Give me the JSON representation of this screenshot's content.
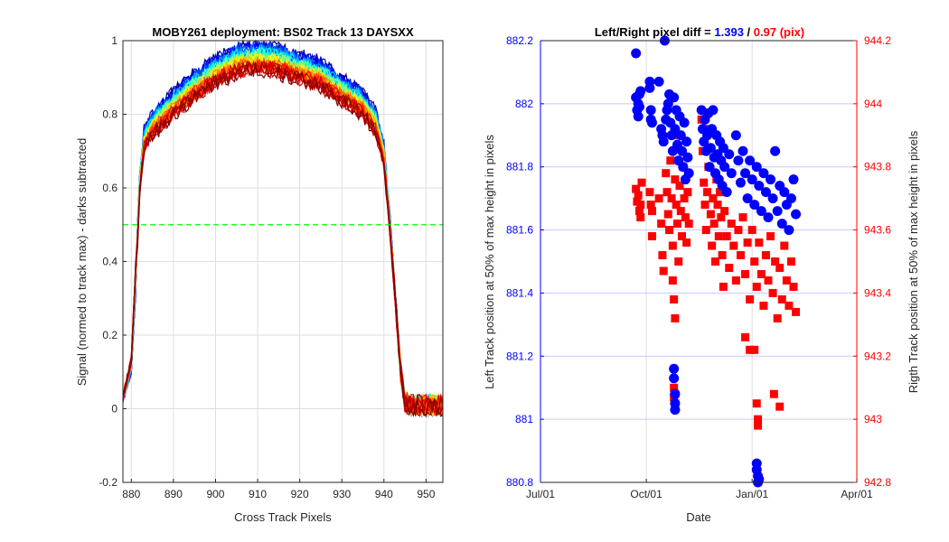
{
  "chart_data": [
    {
      "type": "line",
      "title": "MOBY261 deployment: BS02  Track 13 DAYSXX",
      "xlabel": "Cross Track Pixels",
      "ylabel": "Signal (normed to track max) - darks subtracted",
      "xlim": [
        878,
        954
      ],
      "ylim": [
        -0.2,
        1.0
      ],
      "xticks": [
        880,
        890,
        900,
        910,
        920,
        930,
        940,
        950
      ],
      "yticks": [
        -0.2,
        0,
        0.2,
        0.4,
        0.6,
        0.8,
        1
      ],
      "xtick_labels": [
        "880",
        "890",
        "900",
        "910",
        "920",
        "930",
        "940",
        "950"
      ],
      "ytick_labels": [
        "-0.2",
        "0",
        "0.2",
        "0.4",
        "0.6",
        "0.8",
        "1"
      ],
      "grid": true,
      "colormap": "jet",
      "threshold_line": {
        "y": 0.5,
        "color": "#00ff00",
        "style": "dashed"
      },
      "profile": {
        "x": [
          878,
          880,
          881,
          882,
          883,
          885,
          890,
          895,
          900,
          905,
          910,
          915,
          920,
          925,
          930,
          935,
          938,
          940,
          941,
          942,
          943,
          944,
          945,
          946,
          947,
          950,
          954
        ],
        "y": [
          0.03,
          0.12,
          0.35,
          0.62,
          0.74,
          0.78,
          0.84,
          0.89,
          0.93,
          0.96,
          0.97,
          0.96,
          0.94,
          0.92,
          0.88,
          0.84,
          0.79,
          0.7,
          0.57,
          0.42,
          0.25,
          0.1,
          0.02,
          0.01,
          0.01,
          0.01,
          0.01
        ]
      },
      "n_curves": 40
    },
    {
      "type": "scatter",
      "title_parts": [
        {
          "text": "Left/Right pixel diff = ",
          "color": "#000000"
        },
        {
          "text": "1.393",
          "color": "#0000ff"
        },
        {
          "text": " / ",
          "color": "#000000"
        },
        {
          "text": "0.97 (pix)",
          "color": "#ff0000"
        }
      ],
      "xlabel": "Date",
      "ylabel_left": "Left Track position at 50% of max height in pixels",
      "ylabel_right": "Rigth Track position at 50% of max height in pixels",
      "x_axis": "date",
      "xlim": [
        "2015-07-01",
        "2016-04-01"
      ],
      "xtick_labels": [
        "Jul/01",
        "Oct/01",
        "Jan/01",
        "Apr/01"
      ],
      "ylim_left": [
        880.8,
        882.2
      ],
      "ylim_right": [
        942.8,
        944.2
      ],
      "yticks_left": [
        "880.8",
        "881",
        "881.2",
        "881.4",
        "881.6",
        "881.8",
        "882",
        "882.2"
      ],
      "yticks_right": [
        "942.8",
        "943",
        "943.2",
        "943.4",
        "943.6",
        "943.8",
        "944",
        "944.2"
      ],
      "grid": true,
      "left_color": "#0000ff",
      "right_color": "#ff0000",
      "series": [
        {
          "name": "Left",
          "axis": "left",
          "marker": "circle",
          "color": "#0000ff",
          "points": [
            [
              "2015-09-22",
              882.16
            ],
            [
              "2015-09-22",
              882.02
            ],
            [
              "2015-09-23",
              881.98
            ],
            [
              "2015-09-24",
              882.0
            ],
            [
              "2015-09-24",
              881.96
            ],
            [
              "2015-09-25",
              882.03
            ],
            [
              "2015-09-25",
              881.99
            ],
            [
              "2015-09-26",
              882.04
            ],
            [
              "2015-10-04",
              882.07
            ],
            [
              "2015-10-04",
              882.05
            ],
            [
              "2015-10-05",
              881.98
            ],
            [
              "2015-10-05",
              881.95
            ],
            [
              "2015-10-06",
              881.94
            ],
            [
              "2015-10-12",
              882.07
            ],
            [
              "2015-10-14",
              881.92
            ],
            [
              "2015-10-15",
              881.9
            ],
            [
              "2015-10-16",
              881.88
            ],
            [
              "2015-10-17",
              882.2
            ],
            [
              "2015-10-18",
              881.95
            ],
            [
              "2015-10-19",
              881.98
            ],
            [
              "2015-10-20",
              882.0
            ],
            [
              "2015-10-21",
              882.03
            ],
            [
              "2015-10-22",
              881.94
            ],
            [
              "2015-10-23",
              881.9
            ],
            [
              "2015-10-24",
              881.85
            ],
            [
              "2015-10-25",
              882.02
            ],
            [
              "2015-10-26",
              881.92
            ],
            [
              "2015-10-27",
              881.98
            ],
            [
              "2015-10-28",
              881.87
            ],
            [
              "2015-10-29",
              881.82
            ],
            [
              "2015-10-30",
              881.96
            ],
            [
              "2015-10-31",
              881.9
            ],
            [
              "2015-11-01",
              881.85
            ],
            [
              "2015-11-02",
              881.8
            ],
            [
              "2015-11-03",
              881.94
            ],
            [
              "2015-11-04",
              881.76
            ],
            [
              "2015-11-05",
              881.88
            ],
            [
              "2015-11-06",
              881.83
            ],
            [
              "2015-11-07",
              881.78
            ],
            [
              "2015-10-25",
              881.16
            ],
            [
              "2015-10-25",
              881.13
            ],
            [
              "2015-10-26",
              881.08
            ],
            [
              "2015-10-26",
              881.05
            ],
            [
              "2015-10-26",
              881.03
            ],
            [
              "2015-11-18",
              881.98
            ],
            [
              "2015-11-19",
              881.92
            ],
            [
              "2015-11-20",
              881.88
            ],
            [
              "2015-11-21",
              881.95
            ],
            [
              "2015-11-22",
              881.85
            ],
            [
              "2015-11-23",
              881.9
            ],
            [
              "2015-11-24",
              881.97
            ],
            [
              "2015-11-25",
              881.8
            ],
            [
              "2015-11-26",
              881.86
            ],
            [
              "2015-11-27",
              881.92
            ],
            [
              "2015-11-28",
              881.98
            ],
            [
              "2015-11-29",
              881.83
            ],
            [
              "2015-11-30",
              881.78
            ],
            [
              "2015-12-01",
              881.9
            ],
            [
              "2015-12-02",
              881.84
            ],
            [
              "2015-12-03",
              881.76
            ],
            [
              "2015-12-04",
              881.88
            ],
            [
              "2015-12-05",
              881.82
            ],
            [
              "2015-12-06",
              881.74
            ],
            [
              "2015-12-07",
              881.86
            ],
            [
              "2015-12-08",
              881.8
            ],
            [
              "2015-12-10",
              881.72
            ],
            [
              "2015-12-12",
              881.84
            ],
            [
              "2015-12-14",
              881.78
            ],
            [
              "2015-12-18",
              881.9
            ],
            [
              "2015-12-20",
              881.82
            ],
            [
              "2015-12-22",
              881.75
            ],
            [
              "2015-12-24",
              881.85
            ],
            [
              "2015-12-26",
              881.78
            ],
            [
              "2015-12-28",
              881.7
            ],
            [
              "2015-12-30",
              881.82
            ],
            [
              "2016-01-01",
              881.76
            ],
            [
              "2016-01-03",
              881.68
            ],
            [
              "2016-01-05",
              881.8
            ],
            [
              "2016-01-07",
              881.74
            ],
            [
              "2016-01-09",
              881.66
            ],
            [
              "2016-01-11",
              881.78
            ],
            [
              "2016-01-13",
              881.72
            ],
            [
              "2016-01-15",
              881.64
            ],
            [
              "2016-01-17",
              881.76
            ],
            [
              "2016-01-19",
              881.7
            ],
            [
              "2016-01-21",
              881.85
            ],
            [
              "2016-01-23",
              881.66
            ],
            [
              "2016-01-25",
              881.74
            ],
            [
              "2016-01-27",
              881.62
            ],
            [
              "2016-01-29",
              881.72
            ],
            [
              "2016-01-31",
              881.68
            ],
            [
              "2016-02-02",
              881.6
            ],
            [
              "2016-02-04",
              881.7
            ],
            [
              "2016-02-06",
              881.76
            ],
            [
              "2016-02-08",
              881.65
            ],
            [
              "2016-01-05",
              880.86
            ],
            [
              "2016-01-05",
              880.84
            ],
            [
              "2016-01-06",
              880.82
            ],
            [
              "2016-01-06",
              880.8
            ],
            [
              "2016-01-07",
              880.81
            ]
          ]
        },
        {
          "name": "Right",
          "axis": "right",
          "marker": "square",
          "color": "#ff0000",
          "points": [
            [
              "2015-09-22",
              943.73
            ],
            [
              "2015-09-23",
              943.69
            ],
            [
              "2015-09-24",
              943.71
            ],
            [
              "2015-09-25",
              943.66
            ],
            [
              "2015-09-26",
              943.68
            ],
            [
              "2015-09-27",
              943.75
            ],
            [
              "2015-09-26",
              943.64
            ],
            [
              "2015-10-04",
              943.72
            ],
            [
              "2015-10-05",
              943.68
            ],
            [
              "2015-10-06",
              943.66
            ],
            [
              "2015-10-06",
              943.58
            ],
            [
              "2015-10-12",
              943.7
            ],
            [
              "2015-10-14",
              943.62
            ],
            [
              "2015-10-15",
              943.52
            ],
            [
              "2015-10-16",
              943.47
            ],
            [
              "2015-10-18",
              943.78
            ],
            [
              "2015-10-19",
              943.72
            ],
            [
              "2015-10-20",
              943.65
            ],
            [
              "2015-10-21",
              943.6
            ],
            [
              "2015-10-22",
              943.82
            ],
            [
              "2015-10-23",
              943.7
            ],
            [
              "2015-10-24",
              943.55
            ],
            [
              "2015-10-25",
              943.9
            ],
            [
              "2015-10-26",
              943.76
            ],
            [
              "2015-10-27",
              943.68
            ],
            [
              "2015-10-28",
              943.62
            ],
            [
              "2015-10-29",
              943.5
            ],
            [
              "2015-10-30",
              943.74
            ],
            [
              "2015-10-31",
              943.66
            ],
            [
              "2015-11-01",
              943.58
            ],
            [
              "2015-11-02",
              943.8
            ],
            [
              "2015-11-03",
              943.7
            ],
            [
              "2015-11-04",
              943.64
            ],
            [
              "2015-11-05",
              943.56
            ],
            [
              "2015-11-06",
              943.72
            ],
            [
              "2015-11-07",
              943.62
            ],
            [
              "2015-10-24",
              943.44
            ],
            [
              "2015-10-25",
              943.38
            ],
            [
              "2015-10-26",
              943.32
            ],
            [
              "2015-10-25",
              943.1
            ],
            [
              "2015-10-25",
              943.07
            ],
            [
              "2015-10-26",
              943.05
            ],
            [
              "2015-10-26",
              943.08
            ],
            [
              "2015-11-18",
              943.95
            ],
            [
              "2015-11-19",
              943.85
            ],
            [
              "2015-11-20",
              943.75
            ],
            [
              "2015-11-21",
              943.68
            ],
            [
              "2015-11-22",
              943.6
            ],
            [
              "2015-11-23",
              943.72
            ],
            [
              "2015-11-24",
              943.8
            ],
            [
              "2015-11-25",
              943.92
            ],
            [
              "2015-11-26",
              943.65
            ],
            [
              "2015-11-27",
              943.55
            ],
            [
              "2015-11-28",
              943.7
            ],
            [
              "2015-11-29",
              943.62
            ],
            [
              "2015-11-30",
              943.5
            ],
            [
              "2015-12-01",
              943.76
            ],
            [
              "2015-12-02",
              943.68
            ],
            [
              "2015-12-03",
              943.58
            ],
            [
              "2015-12-04",
              943.72
            ],
            [
              "2015-12-05",
              943.64
            ],
            [
              "2015-12-06",
              943.52
            ],
            [
              "2015-12-07",
              943.42
            ],
            [
              "2015-12-08",
              943.66
            ],
            [
              "2015-12-10",
              943.58
            ],
            [
              "2015-12-12",
              943.48
            ],
            [
              "2015-12-14",
              943.62
            ],
            [
              "2015-12-16",
              943.55
            ],
            [
              "2015-12-18",
              943.44
            ],
            [
              "2015-12-20",
              943.6
            ],
            [
              "2015-12-22",
              943.52
            ],
            [
              "2015-12-24",
              943.64
            ],
            [
              "2015-12-26",
              943.46
            ],
            [
              "2015-12-28",
              943.56
            ],
            [
              "2015-12-30",
              943.38
            ],
            [
              "2016-01-01",
              943.6
            ],
            [
              "2016-01-03",
              943.5
            ],
            [
              "2016-01-05",
              943.42
            ],
            [
              "2016-01-07",
              943.56
            ],
            [
              "2016-01-09",
              943.46
            ],
            [
              "2016-01-11",
              943.36
            ],
            [
              "2016-01-13",
              943.52
            ],
            [
              "2016-01-15",
              943.44
            ],
            [
              "2016-01-17",
              943.58
            ],
            [
              "2016-01-19",
              943.4
            ],
            [
              "2016-01-21",
              943.5
            ],
            [
              "2016-01-23",
              943.32
            ],
            [
              "2016-01-25",
              943.48
            ],
            [
              "2016-01-27",
              943.38
            ],
            [
              "2016-01-29",
              943.55
            ],
            [
              "2016-01-31",
              943.44
            ],
            [
              "2016-02-02",
              943.36
            ],
            [
              "2016-02-04",
              943.5
            ],
            [
              "2016-02-06",
              943.42
            ],
            [
              "2016-02-08",
              943.34
            ],
            [
              "2015-12-26",
              943.26
            ],
            [
              "2015-12-30",
              943.22
            ],
            [
              "2016-01-03",
              943.22
            ],
            [
              "2016-01-05",
              943.05
            ],
            [
              "2016-01-06",
              943.0
            ],
            [
              "2016-01-06",
              942.98
            ],
            [
              "2016-01-20",
              943.08
            ],
            [
              "2016-01-25",
              943.04
            ]
          ]
        }
      ]
    }
  ]
}
